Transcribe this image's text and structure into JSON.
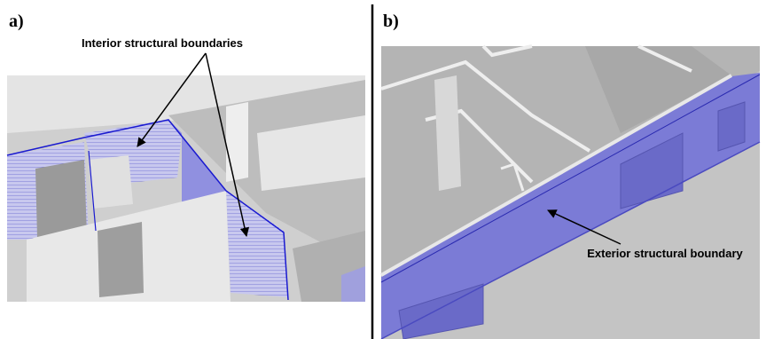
{
  "panels": [
    {
      "label": "a)",
      "annotation": "Interior structural boundaries"
    },
    {
      "label": "b)",
      "annotation": "Exterior structural boundary"
    }
  ]
}
